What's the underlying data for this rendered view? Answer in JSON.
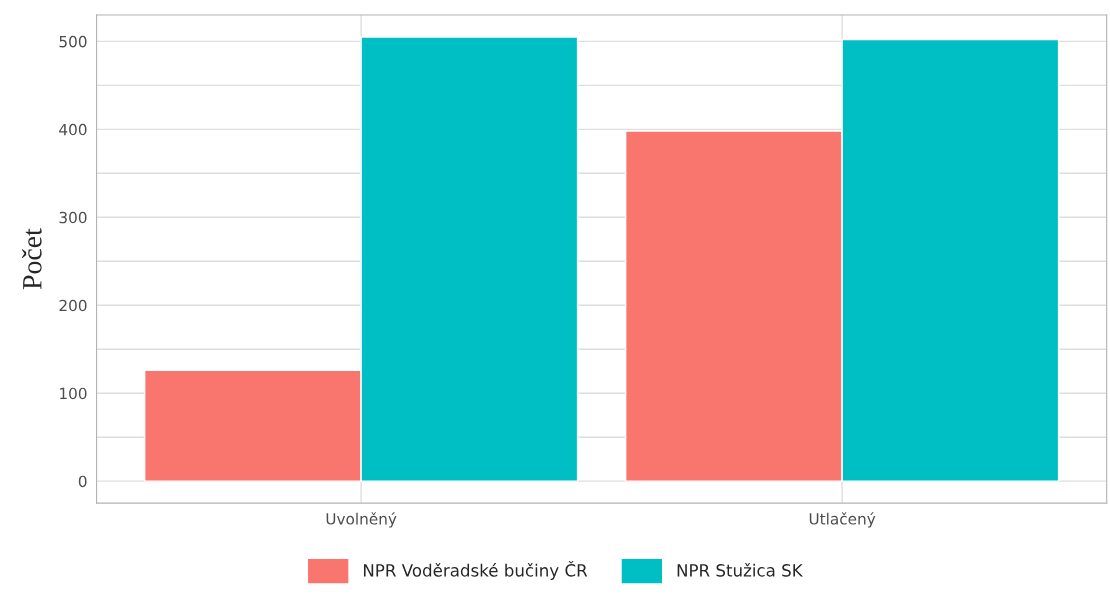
{
  "chart_data": {
    "type": "bar",
    "ylabel": "Počet",
    "categories": [
      "Uvolněný",
      "Utlačený"
    ],
    "series": [
      {
        "name": "NPR Voděradské bučiny ČR",
        "color": "#f8766d",
        "values": [
          126,
          398
        ]
      },
      {
        "name": "NPR Stužica SK",
        "color": "#00bfc4",
        "values": [
          505,
          502
        ]
      }
    ],
    "ylim": [
      -25,
      530
    ],
    "yticks": [
      0,
      {
        "value": 50,
        "label": null
      },
      100,
      {
        "value": 150,
        "label": null
      },
      200,
      {
        "value": 250,
        "label": null
      },
      300,
      {
        "value": 350,
        "label": null
      },
      400,
      {
        "value": 450,
        "label": null
      },
      500
    ],
    "grid": true,
    "legend": "bottom"
  }
}
